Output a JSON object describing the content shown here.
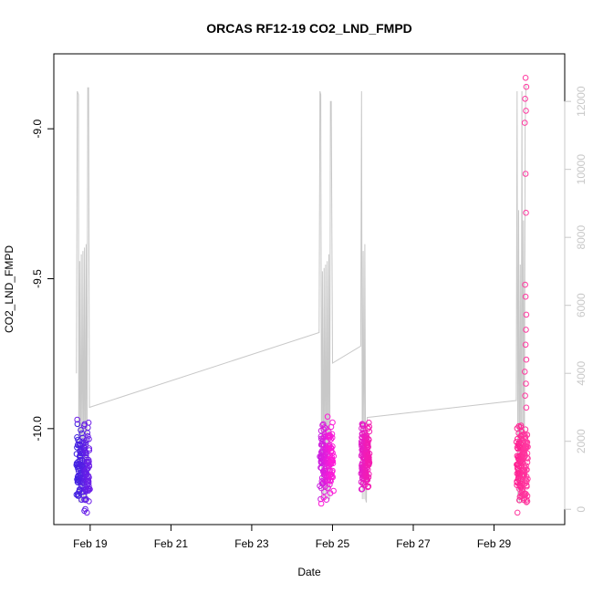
{
  "chart_data": {
    "type": "scatter",
    "title": "ORCAS RF12-19 CO2_LND_FMPD",
    "xlabel": "Date",
    "ylabel": "CO2_LND_FMPD",
    "x_unit": "days since Feb 18",
    "xlim": [
      0.1,
      12.75
    ],
    "ylim": [
      -10.32,
      -8.75
    ],
    "x_ticks": [
      {
        "value": 1,
        "label": "Feb 19"
      },
      {
        "value": 3,
        "label": "Feb 21"
      },
      {
        "value": 5,
        "label": "Feb 23"
      },
      {
        "value": 7,
        "label": "Feb 25"
      },
      {
        "value": 9,
        "label": "Feb 27"
      },
      {
        "value": 11,
        "label": "Feb 29"
      }
    ],
    "y_ticks": [
      {
        "value": -10.0,
        "label": "-10.0"
      },
      {
        "value": -9.5,
        "label": "-9.5"
      },
      {
        "value": -9.0,
        "label": "-9.0"
      }
    ],
    "y2lim": [
      -450,
      13400
    ],
    "y2_ticks": [
      {
        "value": 0,
        "label": "0"
      },
      {
        "value": 2000,
        "label": "2000"
      },
      {
        "value": 4000,
        "label": "4000"
      },
      {
        "value": 6000,
        "label": "6000"
      },
      {
        "value": 8000,
        "label": "8000"
      },
      {
        "value": 10000,
        "label": "10000"
      },
      {
        "value": 12000,
        "label": "12000"
      }
    ],
    "altitude_line": {
      "color": "#c8c8c8",
      "points": [
        [
          0.66,
          4000
        ],
        [
          0.68,
          12300
        ],
        [
          0.71,
          12200
        ],
        [
          0.72,
          200
        ],
        [
          0.74,
          7300
        ],
        [
          0.76,
          200
        ],
        [
          0.78,
          7500
        ],
        [
          0.8,
          200
        ],
        [
          0.82,
          7600
        ],
        [
          0.84,
          200
        ],
        [
          0.86,
          7700
        ],
        [
          0.88,
          200
        ],
        [
          0.9,
          7800
        ],
        [
          0.92,
          300
        ],
        [
          0.94,
          12400
        ],
        [
          0.96,
          12400
        ],
        [
          0.98,
          3000
        ],
        [
          6.67,
          5200
        ],
        [
          6.69,
          12300
        ],
        [
          6.71,
          12200
        ],
        [
          6.73,
          300
        ],
        [
          6.75,
          7000
        ],
        [
          6.77,
          300
        ],
        [
          6.79,
          7100
        ],
        [
          6.81,
          300
        ],
        [
          6.83,
          7200
        ],
        [
          6.85,
          300
        ],
        [
          6.87,
          7300
        ],
        [
          6.89,
          300
        ],
        [
          6.91,
          7500
        ],
        [
          6.93,
          300
        ],
        [
          6.95,
          12000
        ],
        [
          6.97,
          12000
        ],
        [
          7.0,
          4300
        ],
        [
          7.7,
          4800
        ],
        [
          7.72,
          12300
        ],
        [
          7.74,
          300
        ],
        [
          7.76,
          7600
        ],
        [
          7.78,
          300
        ],
        [
          7.8,
          7800
        ],
        [
          7.82,
          300
        ],
        [
          7.84,
          200
        ],
        [
          7.86,
          2700
        ],
        [
          11.55,
          3200
        ],
        [
          11.57,
          12300
        ],
        [
          11.59,
          200
        ],
        [
          11.61,
          8800
        ],
        [
          11.63,
          200
        ],
        [
          11.65,
          7200
        ],
        [
          11.67,
          200
        ],
        [
          11.69,
          12300
        ],
        [
          11.71,
          200
        ],
        [
          11.73,
          8500
        ],
        [
          11.75,
          200
        ],
        [
          11.77,
          11200
        ],
        [
          11.79,
          12500
        ]
      ]
    },
    "series": [
      {
        "color_start": "#3a1fe0",
        "color_end": "#6f1fe8",
        "x_range": [
          0.65,
          1.0
        ],
        "y_range": [
          -10.28,
          -9.98
        ],
        "extra_points": [
          [
            0.68,
            -9.97
          ],
          [
            0.85,
            -9.99
          ],
          [
            0.92,
            -10.28
          ],
          [
            0.96,
            -9.98
          ]
        ]
      },
      {
        "color_start": "#c81ee0",
        "color_end": "#ff1cd6",
        "x_range": [
          6.68,
          7.03
        ],
        "y_range": [
          -10.25,
          -9.97
        ],
        "extra_points": [
          [
            6.72,
            -10.25
          ],
          [
            6.78,
            -10.23
          ],
          [
            6.88,
            -9.96
          ],
          [
            6.95,
            -10.1
          ]
        ]
      },
      {
        "color_start": "#e01ecc",
        "color_end": "#f51cb0",
        "x_range": [
          7.7,
          7.92
        ],
        "y_range": [
          -10.22,
          -9.98
        ],
        "extra_points": [
          [
            7.9,
            -9.98
          ],
          [
            7.88,
            -10.0
          ]
        ]
      },
      {
        "color_start": "#ff1c90",
        "color_end": "#ff3aa0",
        "x_range": [
          11.55,
          11.85
        ],
        "y_range": [
          -10.28,
          -9.98
        ],
        "extra_points": [
          [
            11.78,
            -8.83
          ],
          [
            11.8,
            -8.86
          ],
          [
            11.77,
            -8.9
          ],
          [
            11.79,
            -8.94
          ],
          [
            11.76,
            -8.98
          ],
          [
            11.78,
            -9.15
          ],
          [
            11.79,
            -9.28
          ],
          [
            11.77,
            -9.52
          ],
          [
            11.78,
            -9.56
          ],
          [
            11.8,
            -9.62
          ],
          [
            11.79,
            -9.67
          ],
          [
            11.78,
            -9.72
          ],
          [
            11.8,
            -9.77
          ],
          [
            11.76,
            -9.81
          ],
          [
            11.79,
            -9.85
          ],
          [
            11.77,
            -9.89
          ],
          [
            11.8,
            -9.93
          ],
          [
            11.62,
            -10.2
          ],
          [
            11.58,
            -10.28
          ]
        ]
      }
    ]
  }
}
